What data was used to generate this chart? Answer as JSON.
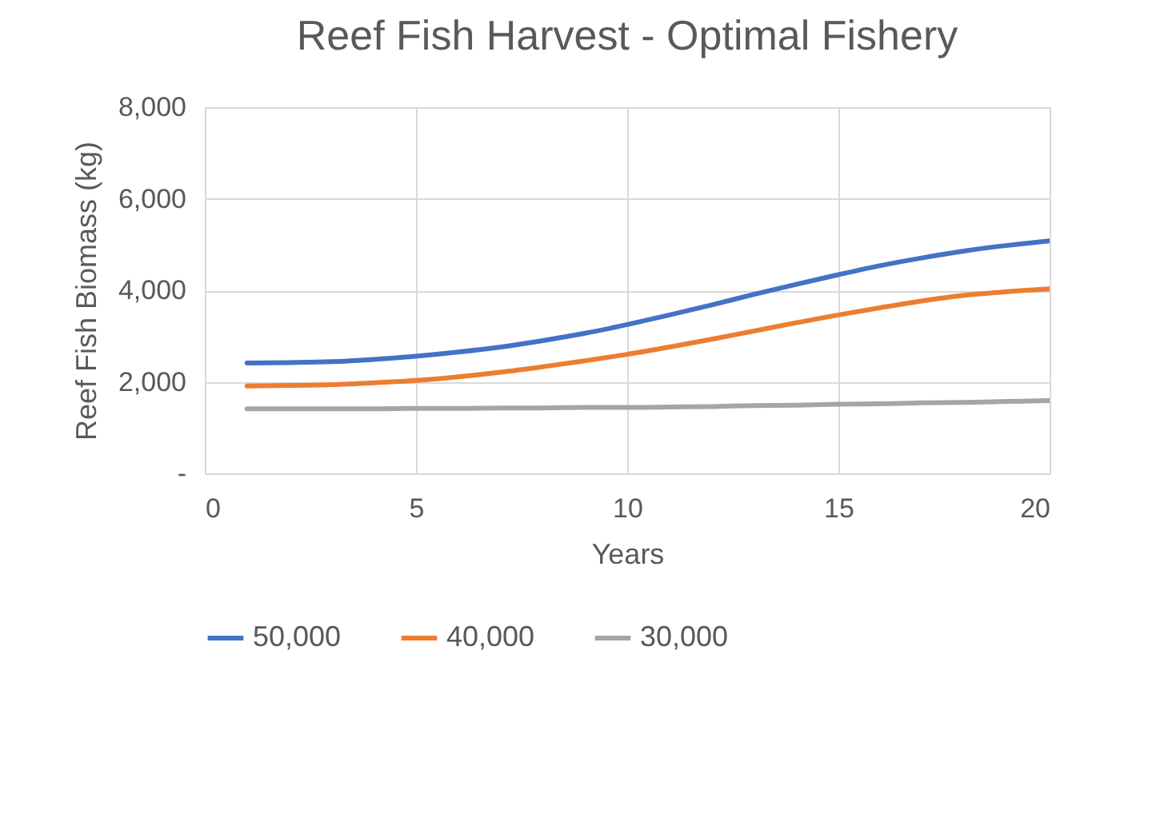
{
  "chart_data": {
    "type": "line",
    "title": "Reef Fish Harvest - Optimal Fishery",
    "xlabel": "Years",
    "ylabel": "Reef Fish Biomass (kg)",
    "x": [
      1,
      2,
      3,
      4,
      5,
      6,
      7,
      8,
      9,
      10,
      11,
      12,
      13,
      14,
      15,
      16,
      17,
      18,
      19,
      20
    ],
    "series": [
      {
        "name": "50,000",
        "color": "#4472c4",
        "values": [
          2410,
          2420,
          2440,
          2490,
          2560,
          2650,
          2760,
          2900,
          3060,
          3250,
          3460,
          3680,
          3910,
          4130,
          4340,
          4540,
          4710,
          4860,
          4980,
          5080
        ]
      },
      {
        "name": "40,000",
        "color": "#ed7d31",
        "values": [
          1910,
          1920,
          1940,
          1980,
          2030,
          2110,
          2210,
          2330,
          2460,
          2600,
          2760,
          2930,
          3110,
          3290,
          3460,
          3620,
          3770,
          3890,
          3970,
          4030
        ]
      },
      {
        "name": "30,000",
        "color": "#a5a5a5",
        "values": [
          1410,
          1410,
          1410,
          1410,
          1420,
          1420,
          1430,
          1430,
          1440,
          1440,
          1450,
          1460,
          1480,
          1490,
          1510,
          1520,
          1540,
          1550,
          1570,
          1590
        ]
      }
    ],
    "xlim": [
      0,
      20
    ],
    "xticks": [
      0,
      5,
      10,
      15,
      20
    ],
    "ylim": [
      0,
      8000
    ],
    "yticks": [
      {
        "value": 0,
        "label": "-"
      },
      {
        "value": 2000,
        "label": "2,000"
      },
      {
        "value": 4000,
        "label": "4,000"
      },
      {
        "value": 6000,
        "label": "6,000"
      },
      {
        "value": 8000,
        "label": "8,000"
      }
    ],
    "grid": true,
    "legend": "bottom",
    "line_style": "solid",
    "marker": "none"
  }
}
